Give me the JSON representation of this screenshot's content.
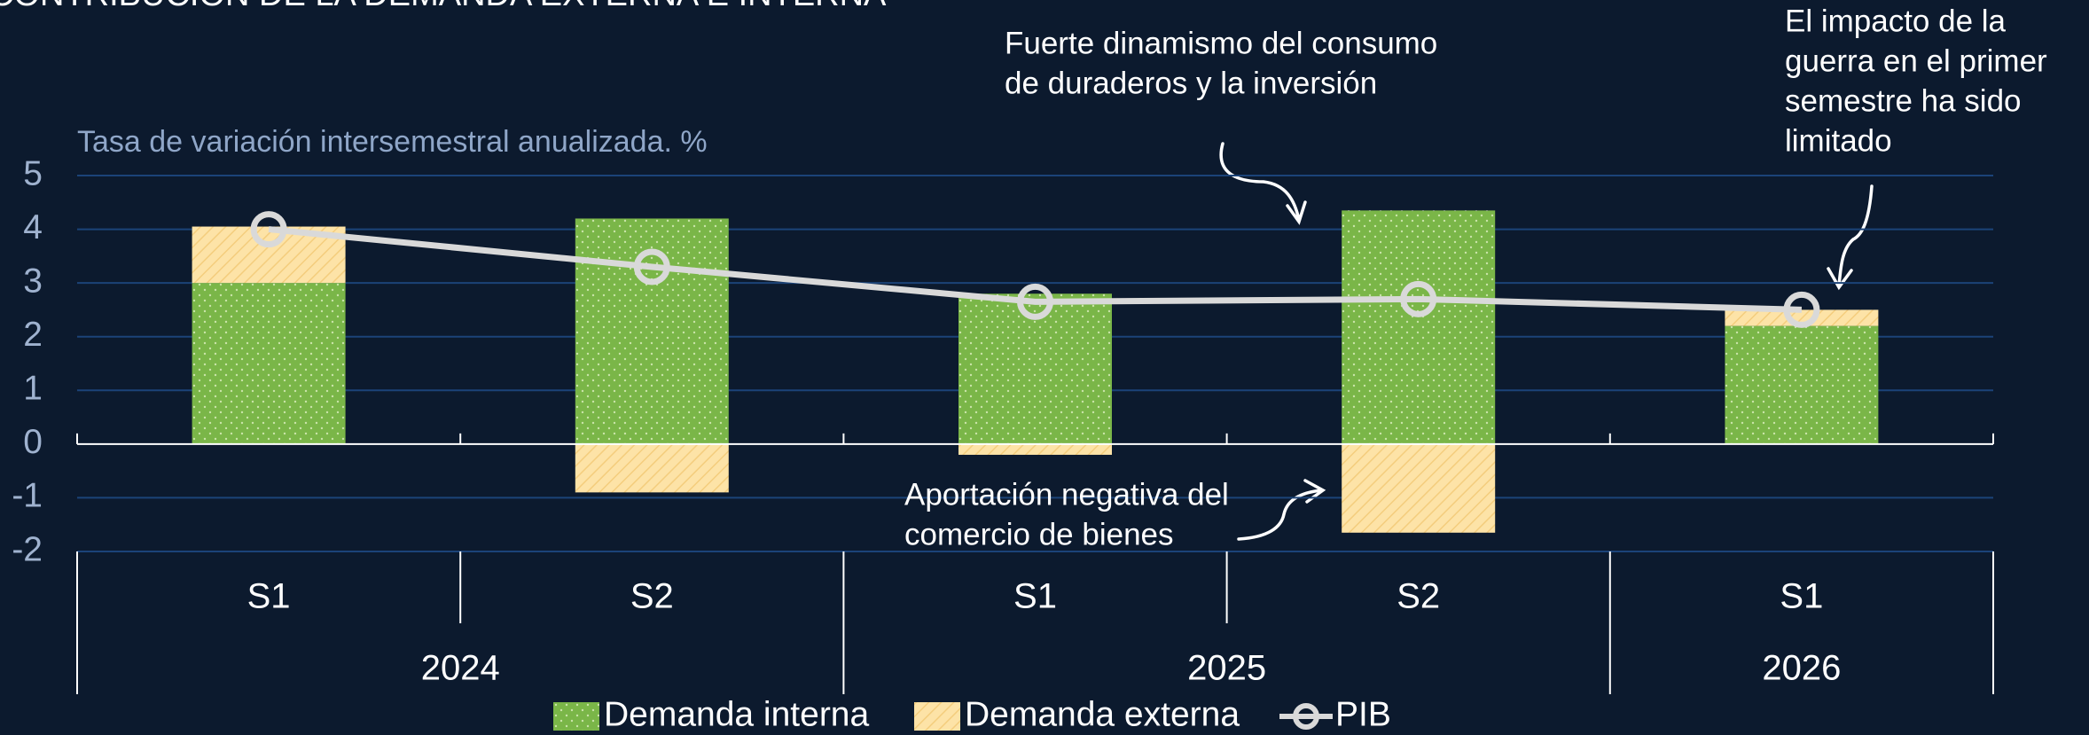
{
  "chart_data": {
    "type": "bar",
    "title": "CONTRIBUCIÓN DE LA DEMANDA EXTERNA E INTERNA",
    "subtitle": "Tasa de variación intersemestral anualizada. %",
    "categories": [
      "S1",
      "S2",
      "S1",
      "S2",
      "S1"
    ],
    "x_groups": [
      "2024",
      "2024",
      "2025",
      "2025",
      "2026"
    ],
    "stacked": true,
    "series": [
      {
        "name": "Demanda interna",
        "type": "bar",
        "color": "#7ab648",
        "values": [
          3.0,
          4.2,
          2.8,
          4.35,
          2.2
        ]
      },
      {
        "name": "Demanda externa",
        "type": "bar",
        "color": "#fde3a7",
        "values": [
          1.05,
          -0.9,
          -0.2,
          -1.65,
          0.3
        ]
      },
      {
        "name": "PIB",
        "type": "line",
        "color": "#d9d9d9",
        "values": [
          4.0,
          3.3,
          2.65,
          2.7,
          2.5
        ]
      }
    ],
    "ylim": [
      -2,
      5
    ],
    "yticks": [
      -2,
      -1,
      0,
      1,
      2,
      3,
      4,
      5
    ],
    "grid": true,
    "legend": "bottom",
    "annotations": [
      {
        "lines": [
          "Fuerte dinamismo del consumo",
          "de duraderos y la inversión"
        ]
      },
      {
        "lines": [
          "El impacto de la",
          "guerra en el primer",
          "semestre ha sido",
          "limitado"
        ]
      },
      {
        "lines": [
          "Aportación negativa del",
          "comercio de bienes"
        ]
      }
    ]
  }
}
